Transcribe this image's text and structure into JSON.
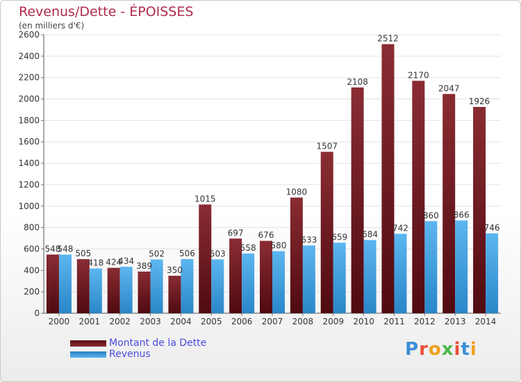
{
  "chart_data": {
    "type": "bar",
    "title": "Revenus/Dette - ÉPOISSES",
    "subtitle": "(en milliers d'€)",
    "categories": [
      "2000",
      "2001",
      "2002",
      "2003",
      "2004",
      "2005",
      "2006",
      "2007",
      "2008",
      "2009",
      "2010",
      "2011",
      "2012",
      "2013",
      "2014"
    ],
    "series": [
      {
        "name": "Montant de la Dette",
        "values": [
          548,
          505,
          424,
          389,
          350,
          1015,
          697,
          676,
          1080,
          1507,
          2108,
          2512,
          2170,
          2047,
          1926
        ],
        "color": "#7a1e24"
      },
      {
        "name": "Revenus",
        "values": [
          548,
          418,
          434,
          502,
          506,
          503,
          558,
          580,
          633,
          659,
          684,
          742,
          860,
          866,
          746
        ],
        "color": "#3a9ee0"
      }
    ],
    "ylim": [
      0,
      2600
    ],
    "yticks": [
      0,
      200,
      400,
      600,
      800,
      1000,
      1200,
      1400,
      1600,
      1800,
      2000,
      2200,
      2400,
      2600
    ],
    "grid": true,
    "legend_position": "bottom-left"
  },
  "logo": {
    "text": "Proxiti",
    "colors": [
      "#3b8fd8",
      "#e8503a",
      "#f0a020",
      "#4db848",
      "#e8503a",
      "#3b8fd8",
      "#f0a020"
    ]
  }
}
